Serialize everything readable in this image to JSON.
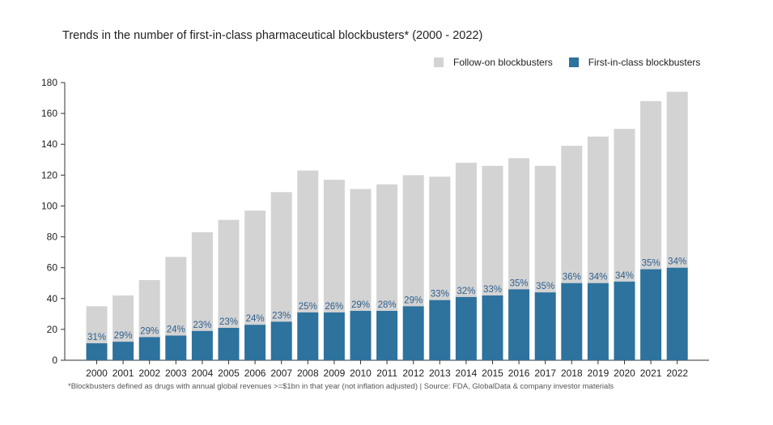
{
  "chart_data": {
    "type": "bar",
    "stacked": true,
    "title": "Trends in the number of first-in-class pharmaceutical blockbusters* (2000 - 2022)",
    "footnote": "*Blockbusters defined as drugs with annual global revenues >=$1bn in that year (not inflation adjusted) | Source: FDA, GlobalData & company investor materials",
    "xlabel": "",
    "ylabel": "",
    "ylim": [
      0,
      180
    ],
    "yticks": [
      0,
      20,
      40,
      60,
      80,
      100,
      120,
      140,
      160,
      180
    ],
    "grid": false,
    "legend_position": "top-right",
    "categories": [
      "2000",
      "2001",
      "2002",
      "2003",
      "2004",
      "2005",
      "2006",
      "2007",
      "2008",
      "2009",
      "2010",
      "2011",
      "2012",
      "2013",
      "2014",
      "2015",
      "2016",
      "2017",
      "2018",
      "2019",
      "2020",
      "2021",
      "2022"
    ],
    "series": [
      {
        "name": "First-in-class blockbusters",
        "color": "#2e729e",
        "values": [
          11,
          12,
          15,
          16,
          19,
          21,
          23,
          25,
          31,
          31,
          32,
          32,
          35,
          39,
          41,
          42,
          46,
          44,
          50,
          50,
          51,
          59,
          60
        ]
      },
      {
        "name": "Follow-on blockbusters",
        "color": "#d3d3d3",
        "values": [
          24,
          30,
          37,
          51,
          64,
          70,
          74,
          84,
          92,
          86,
          79,
          82,
          85,
          80,
          87,
          84,
          85,
          82,
          89,
          95,
          99,
          109,
          114
        ]
      }
    ],
    "data_labels": [
      "31%",
      "29%",
      "29%",
      "24%",
      "23%",
      "23%",
      "24%",
      "23%",
      "25%",
      "26%",
      "29%",
      "28%",
      "29%",
      "33%",
      "32%",
      "33%",
      "35%",
      "35%",
      "36%",
      "34%",
      "34%",
      "35%",
      "34%"
    ]
  }
}
